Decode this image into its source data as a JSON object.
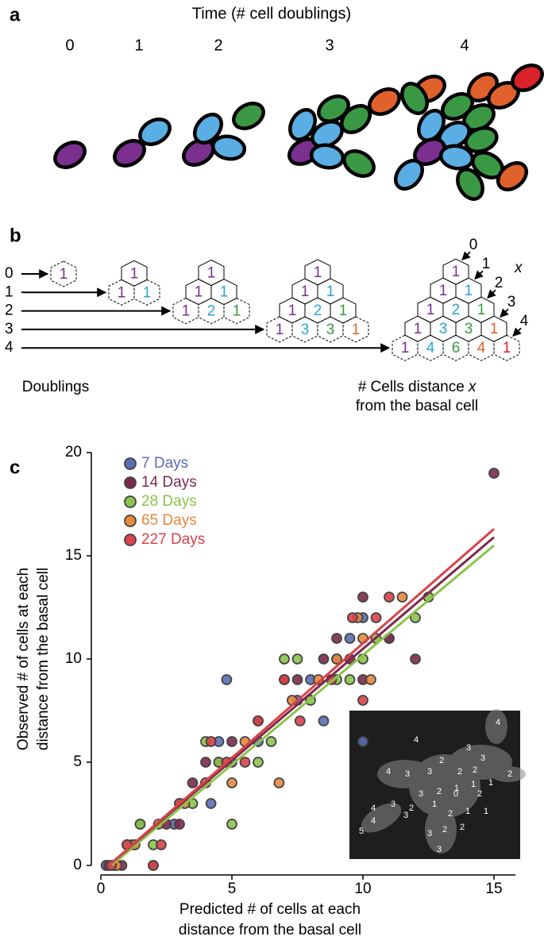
{
  "panel_a": {
    "label": "a",
    "title": "Time (# cell doublings)",
    "times": [
      "0",
      "1",
      "2",
      "3",
      "4"
    ]
  },
  "panel_b": {
    "label": "b",
    "doublings": [
      "0",
      "1",
      "2",
      "3",
      "4"
    ],
    "stages": [
      [
        [
          "1"
        ]
      ],
      [
        [
          "1"
        ],
        [
          "1",
          "1"
        ]
      ],
      [
        [
          "1"
        ],
        [
          "1",
          "1"
        ],
        [
          "1",
          "2",
          "1"
        ]
      ],
      [
        [
          "1"
        ],
        [
          "1",
          "1"
        ],
        [
          "1",
          "2",
          "1"
        ],
        [
          "1",
          "3",
          "3",
          "1"
        ]
      ],
      [
        [
          "1"
        ],
        [
          "1",
          "1"
        ],
        [
          "1",
          "2",
          "1"
        ],
        [
          "1",
          "3",
          "3",
          "1"
        ],
        [
          "1",
          "4",
          "6",
          "4",
          "1"
        ]
      ]
    ],
    "distance_labels": [
      "0",
      "1",
      "2",
      "3",
      "4"
    ],
    "distance_var": "x",
    "left_caption": "Doublings",
    "right_caption": {
      "line1": "# Cells distance",
      "var": "x",
      "line2": "from the basal cell"
    }
  },
  "chart_data": {
    "type": "scatter",
    "label": "c",
    "xlabel": [
      "Predicted # of cells at each",
      "distance from the basal cell"
    ],
    "ylabel": [
      "Observed # of cells at each",
      "distance from the basal cell"
    ],
    "xlim": [
      0,
      16
    ],
    "ylim": [
      0,
      20
    ],
    "xticks": [
      0,
      5,
      10,
      15
    ],
    "yticks": [
      0,
      5,
      10,
      15,
      20
    ],
    "series": [
      {
        "name": "7 Days",
        "color": "#5b6db4",
        "x": [
          0.2,
          0.5,
          1,
          1.5,
          2.8,
          4,
          4.8,
          4.5,
          4.2,
          5,
          6,
          7.5,
          8,
          8.5,
          9.5,
          9,
          10,
          10,
          11
        ],
        "values": [
          0,
          0,
          1,
          2,
          2,
          4,
          9,
          6,
          3,
          5,
          6,
          8,
          9,
          7,
          11,
          10,
          12,
          6,
          11
        ]
      },
      {
        "name": "14 Days",
        "color": "#7d2a4c",
        "x": [
          0.3,
          0.8,
          1.2,
          2,
          2.5,
          3,
          3.5,
          4,
          4.5,
          5,
          6,
          7,
          7.5,
          8.5,
          9,
          9.5,
          10,
          10,
          11,
          12,
          15
        ],
        "values": [
          0,
          0,
          1,
          0,
          2,
          2,
          4,
          5,
          5,
          6,
          7,
          9,
          9,
          10,
          11,
          10,
          13,
          9,
          11,
          10,
          19
        ]
      },
      {
        "name": "28 Days",
        "color": "#8cc34a",
        "x": [
          0.5,
          1,
          1.5,
          2,
          3,
          3.5,
          4,
          4.5,
          5,
          6,
          6.5,
          7,
          7.5,
          8,
          9,
          9.5,
          10,
          10.5,
          12,
          12.5
        ],
        "values": [
          0,
          1,
          2,
          1,
          3,
          3,
          6,
          5,
          2,
          5,
          6,
          10,
          10,
          8,
          9,
          9,
          10,
          11,
          12,
          13
        ]
      },
      {
        "name": "65 Days",
        "color": "#e8883c",
        "x": [
          0.6,
          1.3,
          2.2,
          3.2,
          4,
          5,
          5.5,
          6.8,
          7.3,
          8.3,
          9,
          9.8,
          10,
          11.5,
          10.3
        ],
        "values": [
          0,
          1,
          2,
          3,
          4,
          4,
          6,
          4,
          8,
          9,
          10,
          12,
          11,
          13,
          9
        ]
      },
      {
        "name": "227 Days",
        "color": "#d9434a",
        "x": [
          0.4,
          1,
          2,
          2.3,
          3,
          4.2,
          4.8,
          5.5,
          6,
          7,
          7.6,
          8.8,
          9.6,
          10.5,
          11,
          10
        ],
        "values": [
          0,
          1,
          0,
          1,
          3,
          6,
          5,
          5,
          7,
          9,
          7,
          9,
          12,
          12,
          13,
          8
        ]
      }
    ],
    "fit_lines": [
      {
        "color": "#8cc34a",
        "x": [
          0.4,
          15
        ],
        "values": [
          0,
          15.5
        ]
      },
      {
        "color": "#7d2a4c",
        "x": [
          0.3,
          15
        ],
        "values": [
          0,
          15.9
        ]
      },
      {
        "color": "#d9434a",
        "x": [
          0.3,
          15
        ],
        "values": [
          0,
          16.3
        ]
      }
    ],
    "inset_labels": [
      "4",
      "3",
      "3",
      "4",
      "2",
      "3",
      "2",
      "2",
      "1",
      "1",
      "2",
      "1",
      "4",
      "3",
      "2",
      "0",
      "2",
      "3",
      "2",
      "1",
      "2",
      "1",
      "1",
      "4",
      "3",
      "3",
      "4",
      "5",
      "3",
      "2",
      "2",
      "3"
    ]
  }
}
